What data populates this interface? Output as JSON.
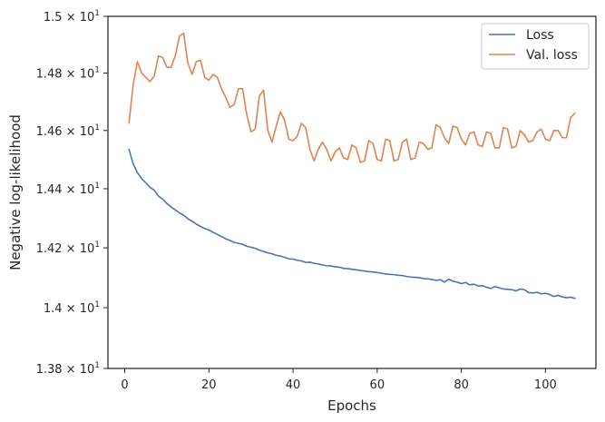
{
  "chart_data": {
    "type": "line",
    "xlabel": "Epochs",
    "ylabel": "Negative log-likelihood",
    "xlim": [
      -4,
      112
    ],
    "ylim": [
      13.8,
      15.0
    ],
    "y_scale": "log",
    "grid": false,
    "legend_position": "top-right",
    "xticks": [
      0,
      20,
      40,
      60,
      80,
      100
    ],
    "xtick_labels": [
      "0",
      "20",
      "40",
      "60",
      "80",
      "100"
    ],
    "yticks": [
      13.8,
      14.0,
      14.2,
      14.4,
      14.6,
      14.8,
      15.0
    ],
    "ytick_labels": [
      {
        "mantissa": "1.38",
        "times": "×",
        "base": "10",
        "exp": "1"
      },
      {
        "mantissa": "1.4",
        "times": "×",
        "base": "10",
        "exp": "1"
      },
      {
        "mantissa": "1.42",
        "times": "×",
        "base": "10",
        "exp": "1"
      },
      {
        "mantissa": "1.44",
        "times": "×",
        "base": "10",
        "exp": "1"
      },
      {
        "mantissa": "1.46",
        "times": "×",
        "base": "10",
        "exp": "1"
      },
      {
        "mantissa": "1.48",
        "times": "×",
        "base": "10",
        "exp": "1"
      },
      {
        "mantissa": "1.5",
        "times": "×",
        "base": "10",
        "exp": "1"
      }
    ],
    "series": [
      {
        "name": "Loss",
        "color": "#4c72b0",
        "x": [
          1,
          2,
          3,
          4,
          5,
          6,
          7,
          8,
          9,
          10,
          11,
          12,
          13,
          14,
          15,
          16,
          17,
          18,
          19,
          20,
          21,
          22,
          23,
          24,
          25,
          26,
          27,
          28,
          29,
          30,
          31,
          32,
          33,
          34,
          35,
          36,
          37,
          38,
          39,
          40,
          41,
          42,
          43,
          44,
          45,
          46,
          47,
          48,
          49,
          50,
          51,
          52,
          53,
          54,
          55,
          56,
          57,
          58,
          59,
          60,
          61,
          62,
          63,
          64,
          65,
          66,
          67,
          68,
          69,
          70,
          71,
          72,
          73,
          74,
          75,
          76,
          77,
          78,
          79,
          80,
          81,
          82,
          83,
          84,
          85,
          86,
          87,
          88,
          89,
          90,
          91,
          92,
          93,
          94,
          95,
          96,
          97,
          98,
          99,
          100,
          101,
          102,
          103,
          104,
          105,
          106,
          107
        ],
        "values": [
          14.535,
          14.485,
          14.455,
          14.435,
          14.42,
          14.405,
          14.395,
          14.375,
          14.365,
          14.35,
          14.338,
          14.328,
          14.318,
          14.31,
          14.298,
          14.29,
          14.28,
          14.272,
          14.265,
          14.26,
          14.252,
          14.245,
          14.238,
          14.23,
          14.225,
          14.218,
          14.215,
          14.212,
          14.205,
          14.202,
          14.198,
          14.192,
          14.188,
          14.183,
          14.18,
          14.175,
          14.172,
          14.168,
          14.163,
          14.162,
          14.158,
          14.156,
          14.151,
          14.152,
          14.148,
          14.146,
          14.142,
          14.14,
          14.139,
          14.136,
          14.135,
          14.131,
          14.13,
          14.128,
          14.126,
          14.124,
          14.122,
          14.12,
          14.119,
          14.117,
          14.115,
          14.112,
          14.111,
          14.11,
          14.108,
          14.107,
          14.104,
          14.102,
          14.101,
          14.1,
          14.097,
          14.096,
          14.094,
          14.091,
          14.093,
          14.085,
          14.095,
          14.088,
          14.085,
          14.08,
          14.084,
          14.076,
          14.078,
          14.072,
          14.073,
          14.068,
          14.064,
          14.07,
          14.066,
          14.062,
          14.061,
          14.06,
          14.056,
          14.062,
          14.06,
          14.05,
          14.049,
          14.051,
          14.046,
          14.048,
          14.044,
          14.037,
          14.041,
          14.036,
          14.033,
          14.035,
          14.031
        ]
      },
      {
        "name": "Val. loss",
        "color": "#dd8452",
        "x": [
          1,
          2,
          3,
          4,
          5,
          6,
          7,
          8,
          9,
          10,
          11,
          12,
          13,
          14,
          15,
          16,
          17,
          18,
          19,
          20,
          21,
          22,
          23,
          24,
          25,
          26,
          27,
          28,
          29,
          30,
          31,
          32,
          33,
          34,
          35,
          36,
          37,
          38,
          39,
          40,
          41,
          42,
          43,
          44,
          45,
          46,
          47,
          48,
          49,
          50,
          51,
          52,
          53,
          54,
          55,
          56,
          57,
          58,
          59,
          60,
          61,
          62,
          63,
          64,
          65,
          66,
          67,
          68,
          69,
          70,
          71,
          72,
          73,
          74,
          75,
          76,
          77,
          78,
          79,
          80,
          81,
          82,
          83,
          84,
          85,
          86,
          87,
          88,
          89,
          90,
          91,
          92,
          93,
          94,
          95,
          96,
          97,
          98,
          99,
          100,
          101,
          102,
          103,
          104,
          105,
          106,
          107
        ],
        "values": [
          14.625,
          14.76,
          14.84,
          14.8,
          14.785,
          14.77,
          14.79,
          14.86,
          14.855,
          14.82,
          14.82,
          14.86,
          14.93,
          14.94,
          14.835,
          14.795,
          14.84,
          14.845,
          14.785,
          14.775,
          14.795,
          14.785,
          14.745,
          14.715,
          14.68,
          14.69,
          14.745,
          14.745,
          14.655,
          14.595,
          14.605,
          14.72,
          14.74,
          14.6,
          14.56,
          14.615,
          14.665,
          14.635,
          14.57,
          14.565,
          14.58,
          14.625,
          14.61,
          14.535,
          14.495,
          14.535,
          14.56,
          14.535,
          14.495,
          14.525,
          14.54,
          14.505,
          14.5,
          14.55,
          14.54,
          14.49,
          14.495,
          14.565,
          14.555,
          14.5,
          14.495,
          14.57,
          14.565,
          14.495,
          14.5,
          14.56,
          14.57,
          14.5,
          14.505,
          14.56,
          14.555,
          14.535,
          14.54,
          14.62,
          14.61,
          14.575,
          14.555,
          14.615,
          14.61,
          14.57,
          14.55,
          14.59,
          14.595,
          14.55,
          14.545,
          14.595,
          14.59,
          14.54,
          14.54,
          14.61,
          14.605,
          14.54,
          14.545,
          14.6,
          14.585,
          14.56,
          14.565,
          14.595,
          14.605,
          14.57,
          14.565,
          14.6,
          14.6,
          14.575,
          14.575,
          14.645,
          14.66
        ]
      }
    ]
  }
}
